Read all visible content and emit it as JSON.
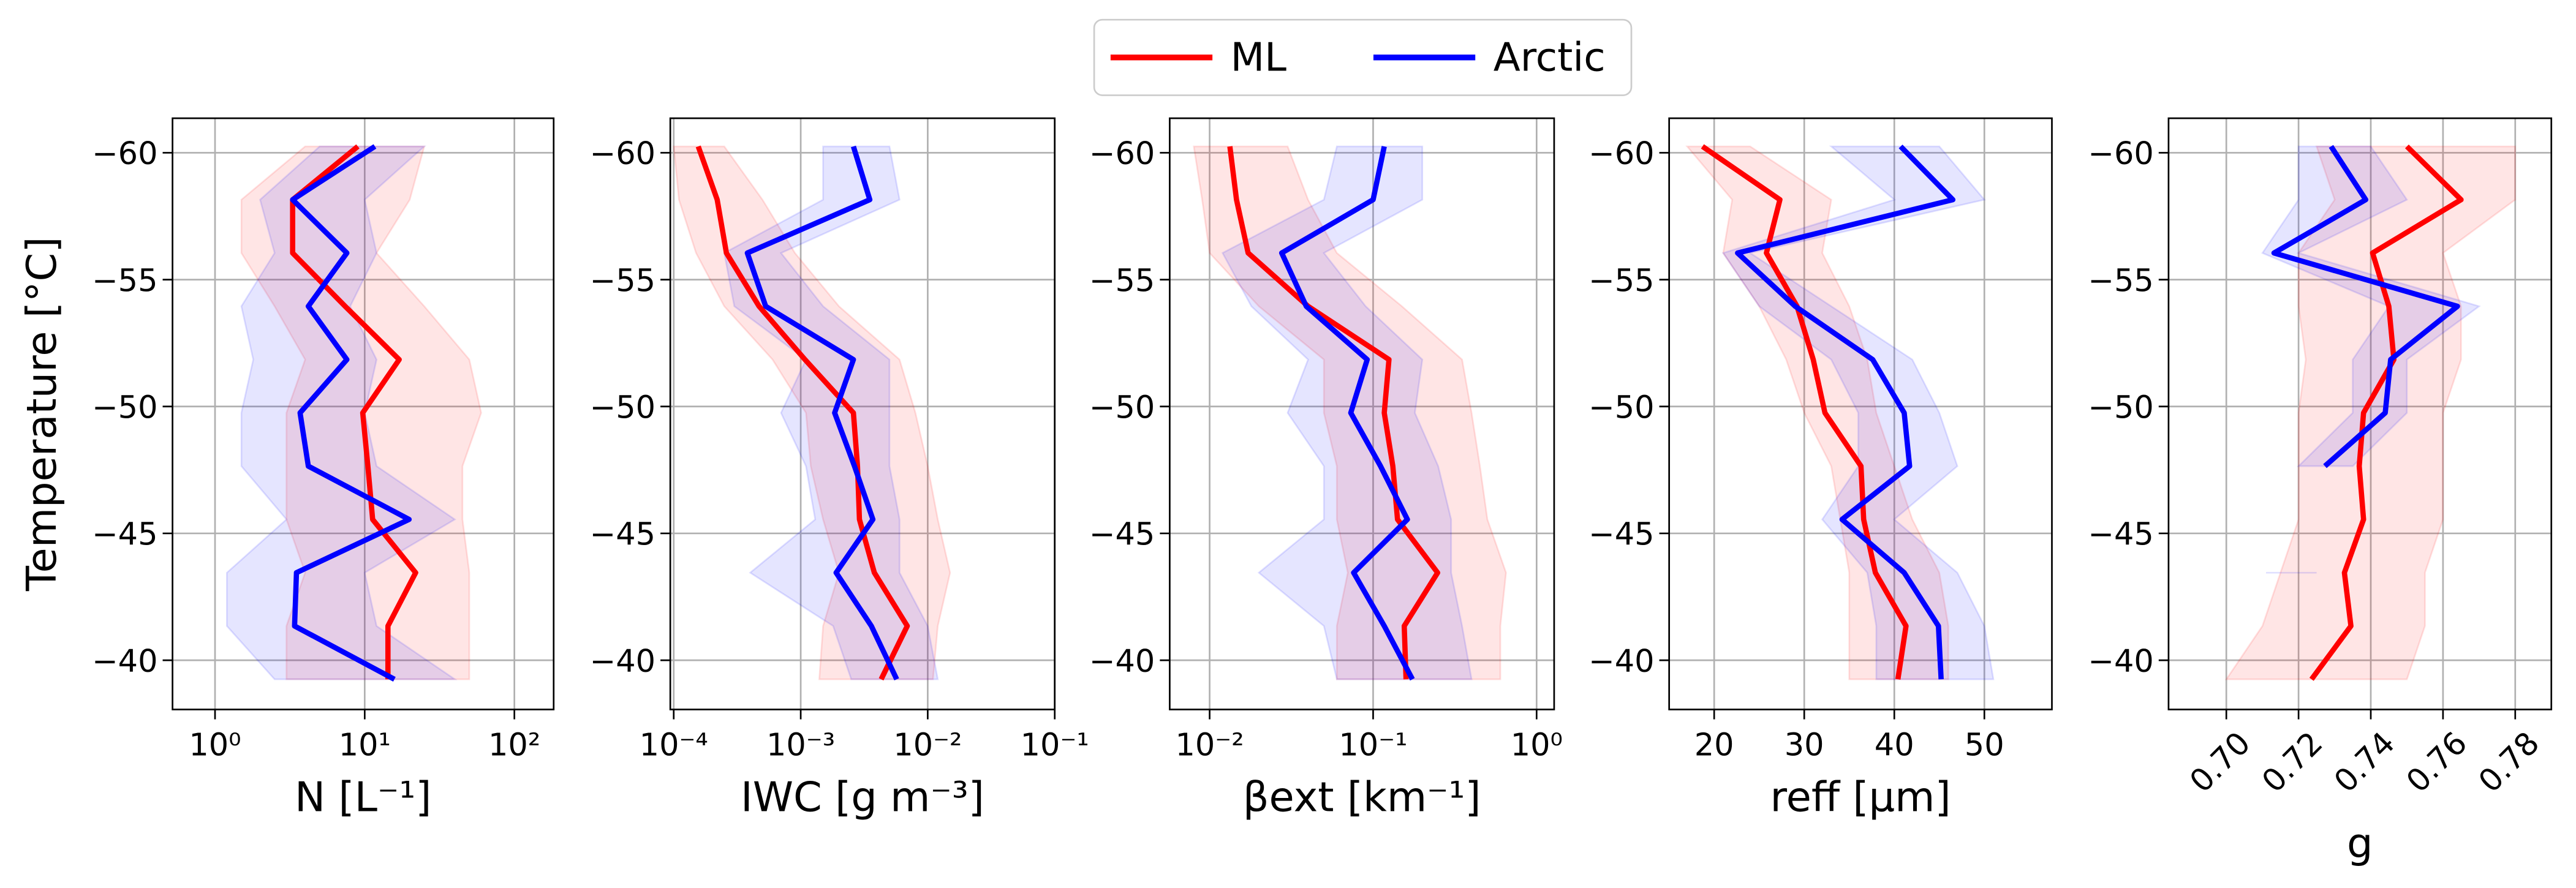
{
  "chart_data": [
    {
      "type": "line",
      "xlabel": "N [L⁻¹]",
      "ylabel": "Temperature [°C]",
      "xscale": "log",
      "grid": true,
      "y_inverted": true,
      "legend": "top",
      "xlim": [
        0.52,
        183
      ],
      "xticks": [
        {
          "value": 1,
          "label": "10⁰"
        },
        {
          "value": 10,
          "label": "10¹"
        },
        {
          "value": 100,
          "label": "10²"
        }
      ],
      "ylim": [
        -61.36,
        -38.06
      ],
      "yticks": [
        {
          "value": -60,
          "label": "−60"
        },
        {
          "value": -55,
          "label": "−55"
        },
        {
          "value": -50,
          "label": "−50"
        },
        {
          "value": -45,
          "label": "−45"
        },
        {
          "value": -40,
          "label": "−40"
        }
      ],
      "y": [
        -60.25,
        -58.15,
        -56.05,
        -53.95,
        -51.85,
        -49.75,
        -47.65,
        -45.55,
        -43.45,
        -41.35,
        -39.25
      ],
      "series": [
        {
          "name": "ML",
          "color": "#ff0000",
          "values": [
            9.0,
            3.3,
            3.3,
            7.4,
            17.0,
            9.7,
            10.5,
            11.3,
            21.9,
            14.3,
            14.3
          ],
          "lower": [
            4,
            1.5,
            1.5,
            2.5,
            4,
            3,
            3,
            3,
            4,
            3,
            3
          ],
          "upper": [
            25,
            20,
            12,
            25,
            50,
            60,
            45,
            45,
            50,
            50,
            50
          ]
        },
        {
          "name": "Arctic",
          "color": "#0000ff",
          "values": [
            11.7,
            3.3,
            7.6,
            4.2,
            7.6,
            3.7,
            4.2,
            19.8,
            3.5,
            3.4,
            15.8
          ],
          "lower": [
            5,
            2,
            2.5,
            1.5,
            1.8,
            1.5,
            1.5,
            3,
            1.2,
            1.2,
            2.5
          ],
          "upper": [
            25,
            10,
            12,
            8,
            12,
            10,
            12,
            40,
            10,
            12,
            40
          ]
        }
      ]
    },
    {
      "type": "line",
      "xlabel": "IWC [g m⁻³]",
      "xscale": "log",
      "grid": true,
      "y_inverted": true,
      "xlim": [
        9.4e-05,
        0.1
      ],
      "xticks": [
        {
          "value": 0.0001,
          "label": "10⁻⁴"
        },
        {
          "value": 0.001,
          "label": "10⁻³"
        },
        {
          "value": 0.01,
          "label": "10⁻²"
        },
        {
          "value": 0.1,
          "label": "10⁻¹"
        }
      ],
      "ylim": [
        -61.36,
        -38.06
      ],
      "yticks": [
        {
          "value": -60,
          "label": "−60"
        },
        {
          "value": -55,
          "label": "−55"
        },
        {
          "value": -50,
          "label": "−50"
        },
        {
          "value": -45,
          "label": "−45"
        },
        {
          "value": -40,
          "label": "−40"
        }
      ],
      "y": [
        -60.25,
        -58.15,
        -56.05,
        -53.95,
        -51.85,
        -49.75,
        -47.65,
        -45.55,
        -43.45,
        -41.35,
        -39.25
      ],
      "series": [
        {
          "name": "ML",
          "color": "#ff0000",
          "values": [
            0.000156,
            0.00022,
            0.00026,
            0.00047,
            0.00108,
            0.0026,
            0.0028,
            0.0029,
            0.0038,
            0.0069,
            0.0043
          ],
          "lower": [
            0.0001,
            0.00011,
            0.00015,
            0.00025,
            0.0006,
            0.0011,
            0.0012,
            0.0015,
            0.002,
            0.0015,
            0.0014
          ],
          "upper": [
            0.00025,
            0.0005,
            0.0009,
            0.002,
            0.006,
            0.008,
            0.01,
            0.012,
            0.015,
            0.012,
            0.011
          ]
        },
        {
          "name": "Arctic",
          "color": "#0000ff",
          "values": [
            0.0026,
            0.0035,
            0.00038,
            0.00053,
            0.0026,
            0.00185,
            0.00265,
            0.0037,
            0.0019,
            0.0036,
            0.0057
          ],
          "lower": [
            0.0015,
            0.0015,
            0.00025,
            0.0003,
            0.0011,
            0.0007,
            0.0011,
            0.0013,
            0.0004,
            0.0018,
            0.0025
          ],
          "upper": [
            0.005,
            0.006,
            0.0007,
            0.0015,
            0.005,
            0.005,
            0.005,
            0.006,
            0.006,
            0.01,
            0.012
          ]
        }
      ]
    },
    {
      "type": "line",
      "xlabel": "βext [km⁻¹]",
      "xscale": "log",
      "grid": true,
      "y_inverted": true,
      "xlim": [
        0.0057,
        1.28
      ],
      "xticks": [
        {
          "value": 0.01,
          "label": "10⁻²"
        },
        {
          "value": 0.1,
          "label": "10⁻¹"
        },
        {
          "value": 1,
          "label": "10⁰"
        }
      ],
      "ylim": [
        -61.36,
        -38.06
      ],
      "yticks": [
        {
          "value": -60,
          "label": "−60"
        },
        {
          "value": -55,
          "label": "−55"
        },
        {
          "value": -50,
          "label": "−50"
        },
        {
          "value": -45,
          "label": "−45"
        },
        {
          "value": -40,
          "label": "−40"
        }
      ],
      "y": [
        -60.25,
        -58.15,
        -56.05,
        -53.95,
        -51.85,
        -49.75,
        -47.65,
        -45.55,
        -43.45,
        -41.35,
        -39.25
      ],
      "series": [
        {
          "name": "ML",
          "color": "#ff0000",
          "values": [
            0.0133,
            0.0146,
            0.0172,
            0.04,
            0.125,
            0.117,
            0.132,
            0.141,
            0.248,
            0.155,
            0.159
          ],
          "lower": [
            0.008,
            0.009,
            0.01,
            0.02,
            0.05,
            0.05,
            0.06,
            0.06,
            0.07,
            0.06,
            0.06
          ],
          "upper": [
            0.03,
            0.04,
            0.06,
            0.15,
            0.35,
            0.4,
            0.45,
            0.5,
            0.65,
            0.6,
            0.6
          ]
        },
        {
          "name": "Arctic",
          "color": "#0000ff",
          "values": [
            0.117,
            0.1,
            0.0276,
            0.039,
            0.092,
            0.073,
            0.111,
            0.162,
            0.076,
            0.117,
            0.174
          ],
          "lower": [
            0.06,
            0.05,
            0.012,
            0.018,
            0.04,
            0.03,
            0.05,
            0.05,
            0.02,
            0.05,
            0.06
          ],
          "upper": [
            0.2,
            0.2,
            0.05,
            0.09,
            0.2,
            0.18,
            0.25,
            0.3,
            0.3,
            0.35,
            0.4
          ]
        }
      ]
    },
    {
      "type": "line",
      "xlabel": "reff [μm]",
      "xscale": "linear",
      "grid": true,
      "y_inverted": true,
      "xlim": [
        15,
        57.5
      ],
      "xticks": [
        20,
        30,
        40,
        50
      ],
      "ylim": [
        -61.36,
        -38.06
      ],
      "yticks": [
        {
          "value": -60,
          "label": "−60"
        },
        {
          "value": -55,
          "label": "−55"
        },
        {
          "value": -50,
          "label": "−50"
        },
        {
          "value": -45,
          "label": "−45"
        },
        {
          "value": -40,
          "label": "−40"
        }
      ],
      "y": [
        -60.25,
        -58.15,
        -56.05,
        -53.95,
        -51.85,
        -49.75,
        -47.65,
        -45.55,
        -43.45,
        -41.35,
        -39.25
      ],
      "series": [
        {
          "name": "ML",
          "color": "#ff0000",
          "values": [
            18.7,
            27.3,
            25.8,
            29.2,
            31.0,
            32.3,
            36.3,
            36.6,
            37.9,
            41.3,
            40.4
          ],
          "lower": [
            17,
            22,
            21,
            25,
            28,
            30,
            33,
            34,
            35,
            35,
            35
          ],
          "upper": [
            24,
            33,
            32,
            35,
            37,
            38,
            40,
            42,
            45,
            46,
            46
          ]
        },
        {
          "name": "Arctic",
          "color": "#0000ff",
          "values": [
            40.7,
            46.5,
            22.6,
            29.0,
            37.6,
            41.1,
            41.7,
            34.2,
            41.1,
            44.9,
            45.2
          ],
          "lower": [
            33,
            40,
            21,
            25,
            33,
            36,
            36,
            32,
            37,
            38,
            38
          ],
          "upper": [
            45,
            50,
            24,
            33,
            42,
            45,
            47,
            40,
            47,
            50,
            51
          ]
        }
      ]
    },
    {
      "type": "line",
      "xlabel": "g",
      "xscale": "linear",
      "grid": true,
      "y_inverted": true,
      "xtick_rotation": 45,
      "xlim": [
        0.684,
        0.79
      ],
      "xticks": [
        {
          "value": 0.7,
          "label": "0.70"
        },
        0.72,
        0.74,
        0.76,
        0.78
      ],
      "ylim": [
        -61.36,
        -38.06
      ],
      "yticks": [
        {
          "value": -60,
          "label": "−60"
        },
        {
          "value": -55,
          "label": "−55"
        },
        {
          "value": -50,
          "label": "−50"
        },
        {
          "value": -45,
          "label": "−45"
        },
        {
          "value": -40,
          "label": "−40"
        }
      ],
      "y": [
        -60.25,
        -58.15,
        -56.05,
        -53.95,
        -51.85,
        -49.75,
        -47.65,
        -45.55,
        -43.45,
        -41.35,
        -39.25
      ],
      "series": [
        {
          "name": "ML",
          "color": "#ff0000",
          "values": [
            0.75,
            0.765,
            0.7405,
            0.745,
            0.7464,
            0.738,
            0.7368,
            0.738,
            0.7327,
            0.7345,
            0.7236
          ],
          "lower": [
            0.725,
            0.73,
            0.72,
            0.72,
            0.722,
            0.72,
            0.72,
            0.72,
            0.715,
            0.71,
            0.7
          ],
          "upper": [
            0.78,
            0.78,
            0.76,
            0.765,
            0.765,
            0.76,
            0.76,
            0.76,
            0.755,
            0.755,
            0.75
          ]
        },
        {
          "name": "Arctic",
          "color": "#0000ff",
          "values": [
            0.729,
            0.7386,
            0.7132,
            0.764,
            0.7455,
            0.744,
            0.7273,
            null,
            null,
            null,
            null
          ],
          "lower": [
            0.72,
            0.72,
            0.71,
            0.745,
            0.735,
            0.735,
            0.72,
            null,
            0.711,
            null,
            null
          ],
          "upper": [
            0.74,
            0.75,
            0.72,
            0.77,
            0.75,
            0.75,
            0.735,
            null,
            0.725,
            null,
            null
          ]
        }
      ]
    }
  ]
}
